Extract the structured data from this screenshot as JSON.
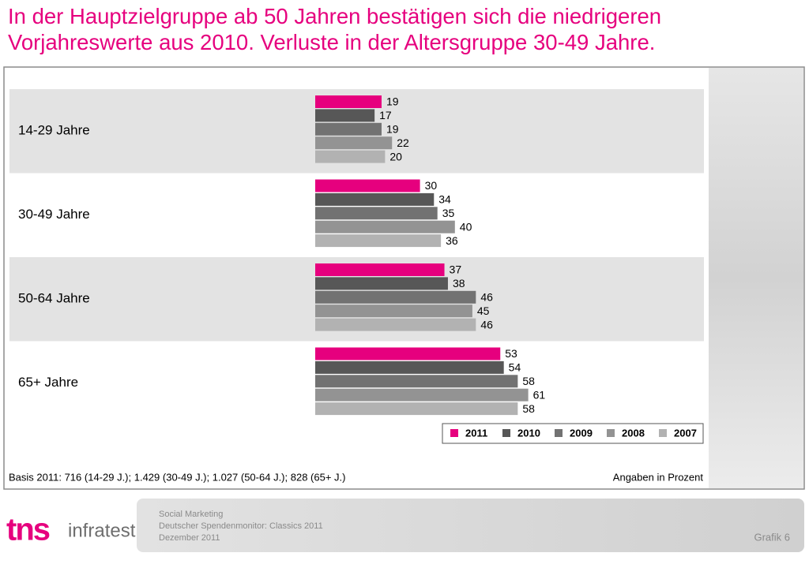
{
  "title": [
    "In der Hauptzielgruppe ab 50 Jahren bestätigen sich die niedrigeren",
    "Vorjahreswerte aus 2010. Verluste in der Altersgruppe 30-49 Jahre."
  ],
  "chart_data": {
    "type": "bar",
    "orientation": "horizontal",
    "categories": [
      "14-29 Jahre",
      "30-49 Jahre",
      "50-64 Jahre",
      "65+ Jahre"
    ],
    "series": [
      {
        "name": "2011",
        "color": "#e6007e",
        "values": [
          19,
          30,
          37,
          53
        ]
      },
      {
        "name": "2010",
        "color": "#575757",
        "values": [
          17,
          34,
          38,
          54
        ]
      },
      {
        "name": "2009",
        "color": "#727272",
        "values": [
          19,
          35,
          46,
          58
        ]
      },
      {
        "name": "2008",
        "color": "#939393",
        "values": [
          22,
          40,
          45,
          61
        ]
      },
      {
        "name": "2007",
        "color": "#b2b2b2",
        "values": [
          20,
          36,
          46,
          58
        ]
      }
    ],
    "note": "Basis 2011: 716 (14-29 J.); 1.429 (30-49 J.); 1.027 (50-64 J.); 828 (65+ J.)",
    "unit_note": "Angaben in Prozent"
  },
  "logo": {
    "brand": "tns",
    "sub": "infratest"
  },
  "footer": {
    "lines": [
      "Social Marketing",
      "Deutscher  Spendenmonitor: Classics 2011",
      "Dezember  2011"
    ],
    "page": "Grafik 6"
  }
}
